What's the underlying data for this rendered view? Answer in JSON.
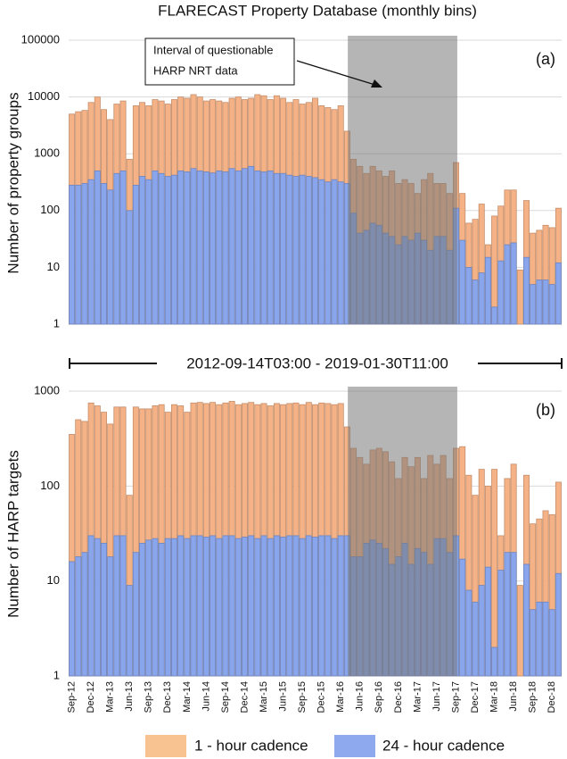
{
  "chart_data": [
    {
      "type": "bar",
      "title": "FLARECAST Property Database (monthly bins)",
      "y_label": "Number of property groups",
      "annotation": "(a)",
      "note_lines": [
        "Interval of questionable",
        "HARP NRT data"
      ],
      "log_scale": true,
      "grid": true,
      "ylim": [
        1,
        100000
      ],
      "yticks": [
        1,
        10,
        100,
        1000,
        10000,
        100000
      ],
      "series": [
        {
          "color": "#f5b286",
          "values": [
            5000,
            5500,
            5800,
            8000,
            10000,
            6000,
            4000,
            7500,
            8500,
            800,
            7000,
            8000,
            7000,
            9000,
            8500,
            7500,
            9000,
            10000,
            9500,
            11000,
            10000,
            8500,
            9000,
            8500,
            8000,
            9500,
            10000,
            9000,
            9500,
            11000,
            10500,
            9000,
            10500,
            9500,
            8000,
            9000,
            7500,
            8000,
            9500,
            7000,
            6500,
            6000,
            7000,
            2500,
            800,
            600,
            450,
            600,
            500,
            400,
            500,
            300,
            350,
            300,
            200,
            350,
            450,
            300,
            300,
            200,
            700,
            200,
            60,
            70,
            130,
            25,
            80,
            120,
            230,
            230,
            9,
            150,
            40,
            45,
            55,
            50,
            110
          ]
        },
        {
          "color": "#89a5ec",
          "values": [
            280,
            280,
            300,
            350,
            500,
            300,
            230,
            450,
            500,
            100,
            280,
            400,
            350,
            500,
            450,
            400,
            420,
            500,
            480,
            550,
            500,
            480,
            460,
            500,
            480,
            550,
            500,
            550,
            600,
            500,
            480,
            500,
            450,
            450,
            420,
            400,
            420,
            400,
            380,
            350,
            320,
            350,
            320,
            300,
            90,
            40,
            45,
            60,
            55,
            40,
            35,
            25,
            35,
            30,
            40,
            30,
            20,
            35,
            35,
            20,
            110,
            30,
            10,
            6,
            8,
            15,
            2,
            13,
            25,
            27,
            1,
            15,
            5,
            6,
            6,
            5,
            12
          ]
        }
      ]
    },
    {
      "type": "bar",
      "y_label": "Number of HARP targets",
      "annotation": "(b)",
      "log_scale": true,
      "grid": true,
      "ylim": [
        1,
        1000
      ],
      "yticks": [
        1,
        10,
        100,
        1000
      ],
      "categories": [
        "Sep-12",
        null,
        null,
        "Dec-12",
        null,
        null,
        "Mar-13",
        null,
        null,
        "Jun-13",
        null,
        null,
        "Sep-13",
        null,
        null,
        "Dec-13",
        null,
        null,
        "Mar-14",
        null,
        null,
        "Jun-14",
        null,
        null,
        "Sep-14",
        null,
        null,
        "Dec-14",
        null,
        null,
        "Mar-15",
        null,
        null,
        "Jun-15",
        null,
        null,
        "Sep-15",
        null,
        null,
        "Dec-15",
        null,
        null,
        "Mar-16",
        null,
        null,
        "Jun-16",
        null,
        null,
        "Sep-16",
        null,
        null,
        "Dec-16",
        null,
        null,
        "Mar-17",
        null,
        null,
        "Jun-17",
        null,
        null,
        "Sep-17",
        null,
        null,
        "Dec-17",
        null,
        null,
        "Mar-18",
        null,
        null,
        "Jun-18",
        null,
        null,
        "Sep-18",
        null,
        null,
        "Dec-18",
        null
      ],
      "series": [
        {
          "name": "1 - hour cadence",
          "color": "#f5b286",
          "values": [
            350,
            500,
            480,
            750,
            700,
            600,
            450,
            680,
            680,
            80,
            680,
            650,
            650,
            700,
            720,
            600,
            720,
            700,
            600,
            750,
            760,
            740,
            760,
            720,
            750,
            780,
            720,
            740,
            760,
            720,
            740,
            700,
            740,
            720,
            740,
            750,
            720,
            760,
            720,
            750,
            740,
            720,
            740,
            420,
            250,
            200,
            170,
            240,
            250,
            230,
            180,
            120,
            200,
            160,
            200,
            120,
            210,
            170,
            210,
            120,
            250,
            260,
            130,
            80,
            150,
            100,
            150,
            30,
            120,
            170,
            9,
            130,
            40,
            45,
            55,
            50,
            110
          ]
        },
        {
          "name": "24 - hour cadence",
          "color": "#89a5ec",
          "values": [
            16,
            18,
            20,
            30,
            28,
            25,
            18,
            30,
            30,
            9,
            20,
            25,
            27,
            28,
            25,
            28,
            28,
            30,
            28,
            30,
            30,
            29,
            30,
            28,
            30,
            30,
            28,
            29,
            30,
            28,
            30,
            28,
            30,
            29,
            30,
            30,
            28,
            30,
            29,
            30,
            30,
            28,
            30,
            30,
            18,
            18,
            25,
            27,
            25,
            22,
            15,
            18,
            25,
            15,
            22,
            20,
            15,
            28,
            28,
            20,
            30,
            17,
            8,
            6,
            9,
            14,
            2,
            13,
            20,
            20,
            1,
            15,
            5,
            6,
            6,
            5,
            12
          ]
        }
      ]
    }
  ],
  "date_range": "2012-09-14T03:00 - 2019-01-30T11:00"
}
